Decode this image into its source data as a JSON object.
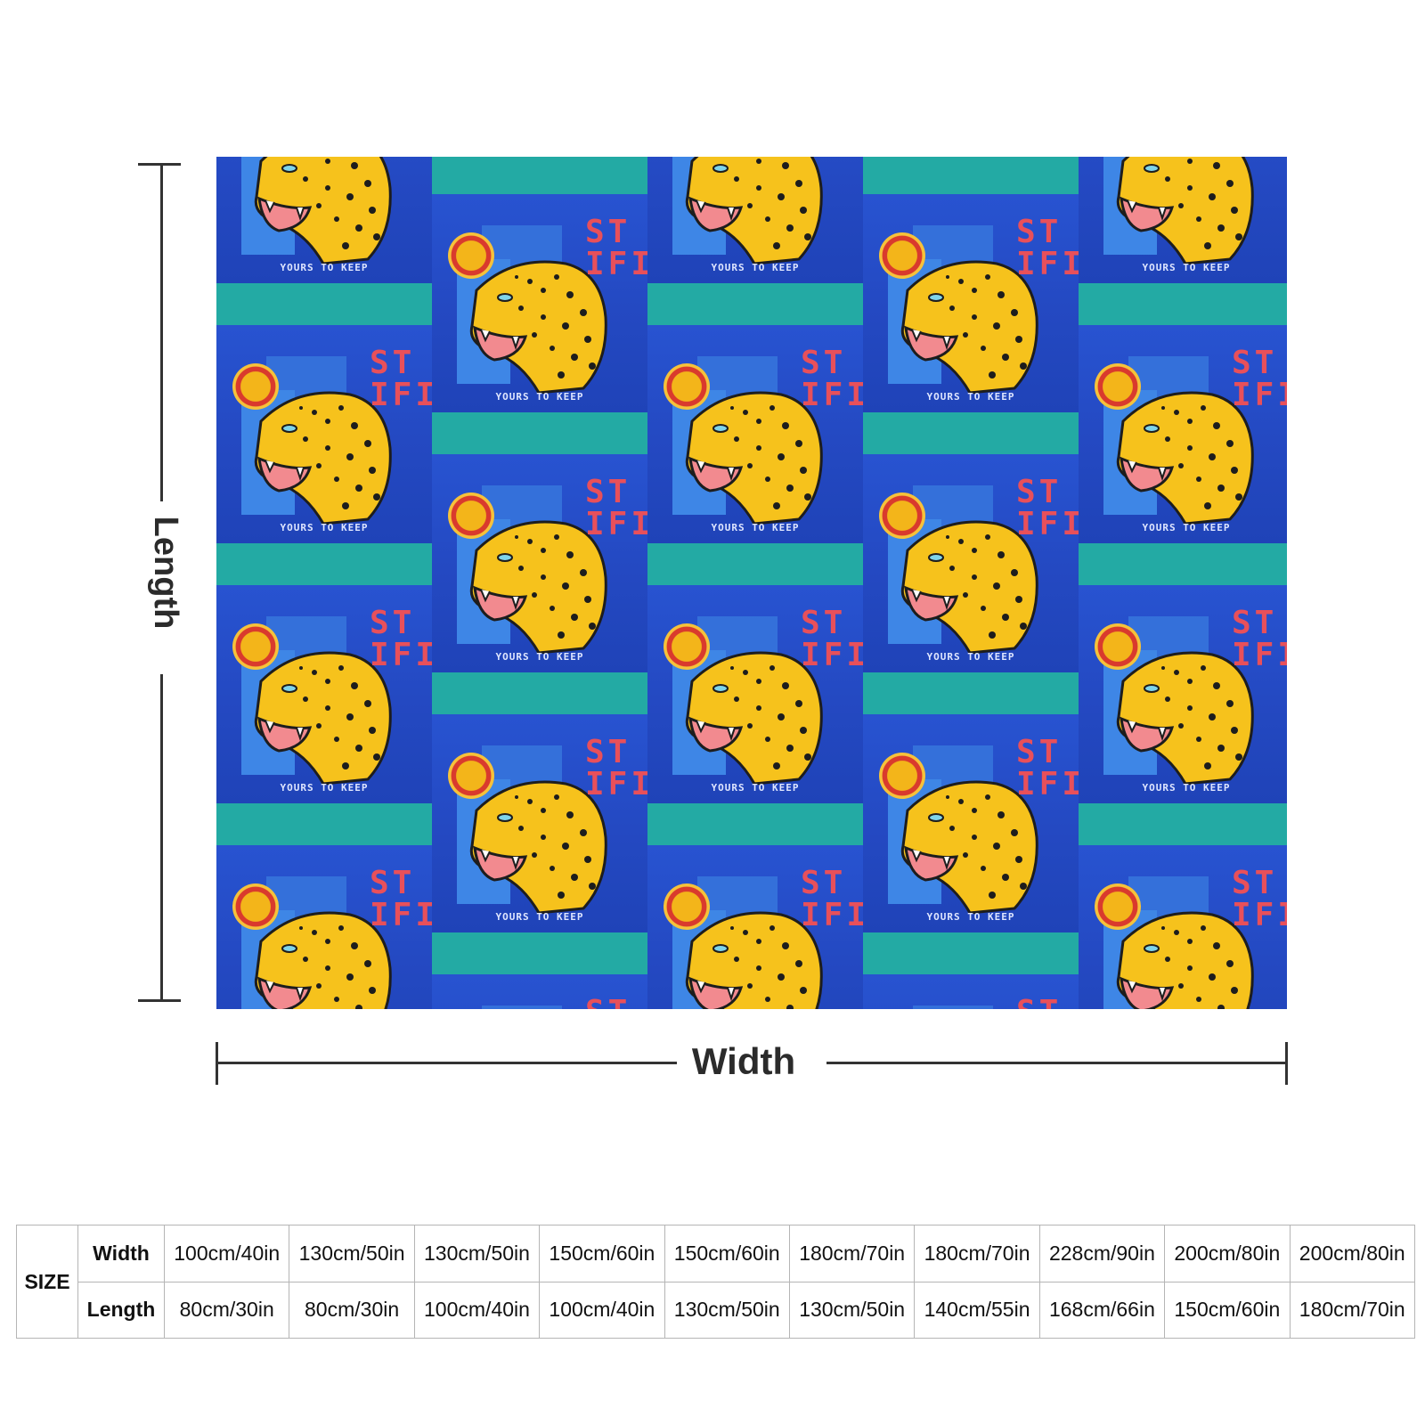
{
  "product": {
    "tile_text": {
      "brand": "ST\nIFI",
      "caption": "YOURS TO KEEP"
    },
    "colors": {
      "blue": "#2452cc",
      "teal": "#23aaa4",
      "yellow": "#f6c21c",
      "red": "#e8505a"
    }
  },
  "dimensions": {
    "length_label": "Length",
    "width_label": "Width"
  },
  "size_table": {
    "title": "SIZE",
    "rows": [
      {
        "label": "Width",
        "values": [
          "100cm/40in",
          "130cm/50in",
          "130cm/50in",
          "150cm/60in",
          "150cm/60in",
          "180cm/70in",
          "180cm/70in",
          "228cm/90in",
          "200cm/80in",
          "200cm/80in"
        ]
      },
      {
        "label": "Length",
        "values": [
          "80cm/30in",
          "80cm/30in",
          "100cm/40in",
          "100cm/40in",
          "130cm/50in",
          "130cm/50in",
          "140cm/55in",
          "168cm/66in",
          "150cm/60in",
          "180cm/70in"
        ]
      }
    ]
  }
}
